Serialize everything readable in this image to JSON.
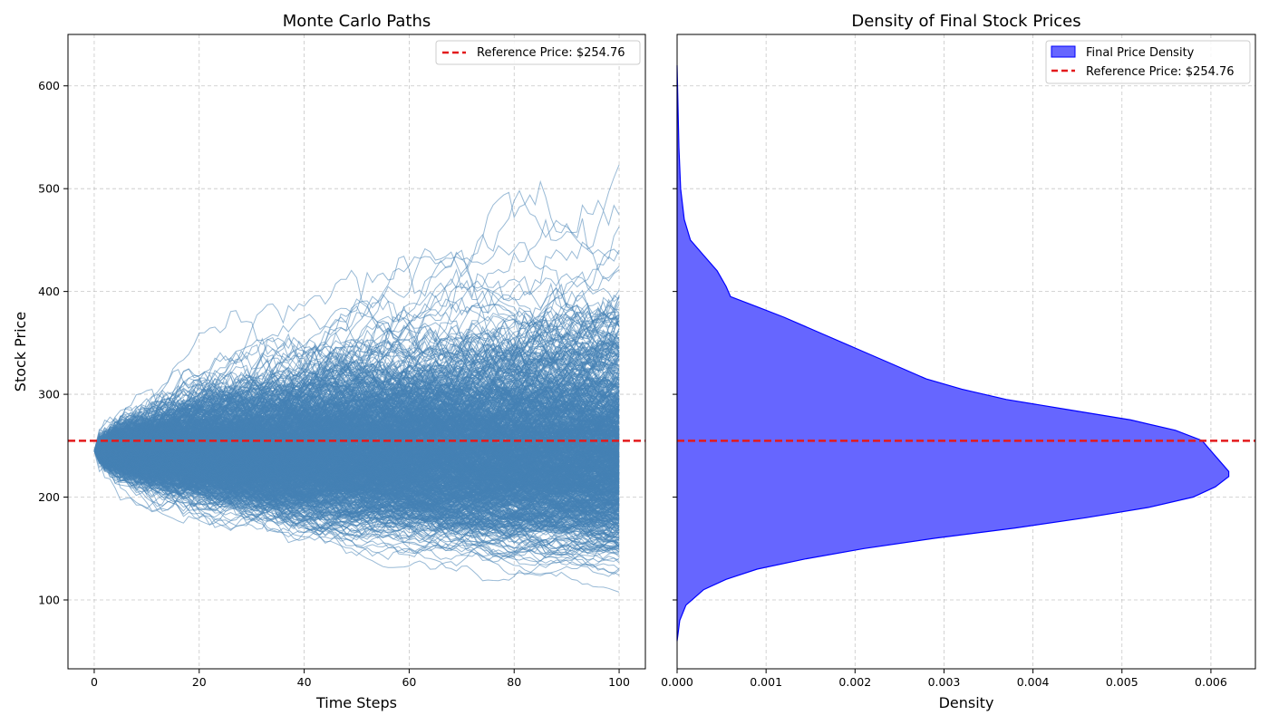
{
  "chart_data": [
    {
      "type": "line",
      "title": "Monte Carlo Paths",
      "xlabel": "Time Steps",
      "ylabel": "Stock Price",
      "xlim": [
        -5,
        105
      ],
      "ylim": [
        33,
        650
      ],
      "xticks": [
        0,
        20,
        40,
        60,
        80,
        100
      ],
      "yticks": [
        100,
        200,
        300,
        400,
        500,
        600
      ],
      "grid": true,
      "series_color": "#4682b4",
      "paths_description_summary": {
        "steps": 100,
        "start_value": 245,
        "final_min": 110,
        "final_max": 575,
        "overall_min": 88,
        "overall_max": 580
      },
      "reference_line": {
        "y": 254.76,
        "color": "#e31a1c",
        "label": "Reference Price: $254.76"
      },
      "legend": {
        "position": "top-right",
        "entries": [
          "Reference Price: $254.76"
        ]
      }
    },
    {
      "type": "area",
      "title": "Density of Final Stock Prices",
      "xlabel": "Density",
      "ylabel": "",
      "xlim": [
        0,
        0.0065
      ],
      "ylim": [
        33,
        650
      ],
      "xticks": [
        "0.000",
        "0.001",
        "0.002",
        "0.003",
        "0.004",
        "0.005",
        "0.006"
      ],
      "grid": true,
      "fill_color": "#6666ff",
      "edge_color": "#0000ff",
      "density_points": [
        [
          60,
          0.0
        ],
        [
          80,
          3e-05
        ],
        [
          95,
          0.0001
        ],
        [
          110,
          0.0003
        ],
        [
          120,
          0.00055
        ],
        [
          130,
          0.0009
        ],
        [
          140,
          0.00145
        ],
        [
          150,
          0.0021
        ],
        [
          160,
          0.0029
        ],
        [
          170,
          0.0038
        ],
        [
          180,
          0.0046
        ],
        [
          190,
          0.0053
        ],
        [
          200,
          0.0058
        ],
        [
          210,
          0.00605
        ],
        [
          220,
          0.0062
        ],
        [
          225,
          0.0062
        ],
        [
          235,
          0.0061
        ],
        [
          245,
          0.006
        ],
        [
          255,
          0.0059
        ],
        [
          265,
          0.0056
        ],
        [
          275,
          0.0051
        ],
        [
          285,
          0.0044
        ],
        [
          295,
          0.0037
        ],
        [
          305,
          0.0032
        ],
        [
          315,
          0.0028
        ],
        [
          330,
          0.0024
        ],
        [
          345,
          0.002
        ],
        [
          360,
          0.0016
        ],
        [
          375,
          0.0012
        ],
        [
          385,
          0.0009
        ],
        [
          395,
          0.0006
        ],
        [
          405,
          0.00055
        ],
        [
          420,
          0.00045
        ],
        [
          435,
          0.0003
        ],
        [
          450,
          0.00015
        ],
        [
          470,
          8e-05
        ],
        [
          500,
          4e-05
        ],
        [
          540,
          2e-05
        ],
        [
          580,
          1e-05
        ],
        [
          620,
          0.0
        ]
      ],
      "reference_line": {
        "y": 254.76,
        "color": "#e31a1c",
        "label": "Reference Price: $254.76"
      },
      "legend": {
        "position": "top-right",
        "entries": [
          "Final Price Density",
          "Reference Price: $254.76"
        ]
      }
    }
  ]
}
